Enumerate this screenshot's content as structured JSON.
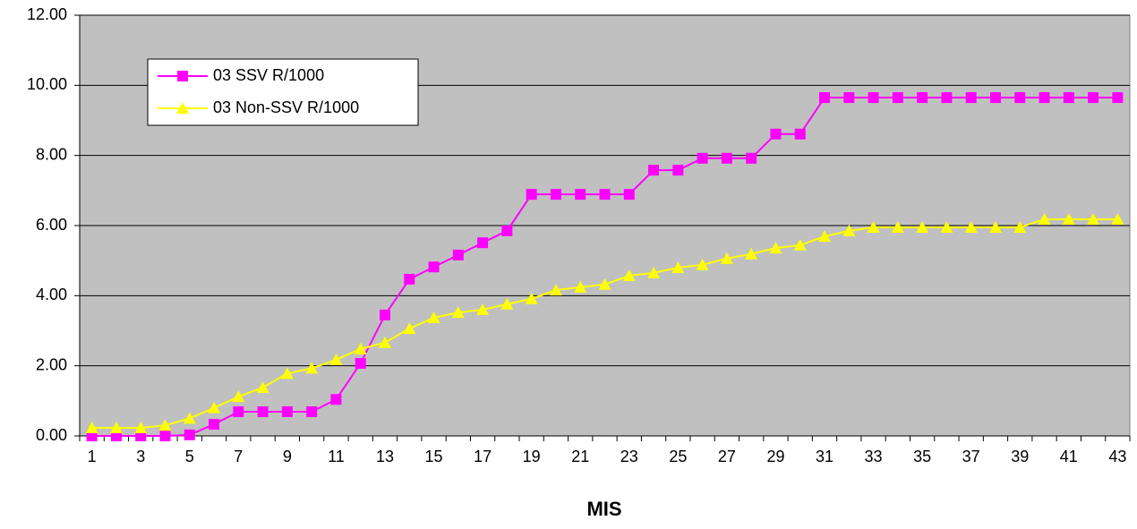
{
  "chart_data": {
    "type": "line",
    "x_label": "MIS",
    "categories": [
      "1",
      null,
      "3",
      null,
      "5",
      null,
      "7",
      null,
      "9",
      null,
      "11",
      null,
      "13",
      null,
      "15",
      null,
      "17",
      null,
      "19",
      null,
      "21",
      null,
      "23",
      null,
      "25",
      null,
      "27",
      null,
      "29",
      null,
      "31",
      null,
      "33",
      null,
      "35",
      null,
      "37",
      null,
      "39",
      null,
      "41",
      null,
      "43"
    ],
    "series": [
      {
        "name": "03 SSV R/1000",
        "color": "#ff00ff",
        "marker": "square",
        "values": [
          0,
          0,
          0,
          0,
          0.03,
          0.33,
          0.69,
          0.69,
          0.69,
          0.69,
          1.04,
          2.07,
          3.45,
          4.47,
          4.82,
          5.16,
          5.51,
          5.85,
          6.89,
          6.89,
          6.89,
          6.89,
          6.89,
          7.58,
          7.58,
          7.92,
          7.92,
          7.92,
          8.61,
          8.61,
          9.65,
          9.65,
          9.65,
          9.65,
          9.65,
          9.65,
          9.65,
          9.65,
          9.65,
          9.65,
          9.65,
          9.65,
          9.65
        ]
      },
      {
        "name": "03 Non-SSV R/1000",
        "color": "#ffff00",
        "marker": "triangle",
        "values": [
          0.23,
          0.23,
          0.23,
          0.3,
          0.5,
          0.8,
          1.12,
          1.38,
          1.78,
          1.93,
          2.17,
          2.48,
          2.66,
          3.06,
          3.37,
          3.52,
          3.6,
          3.76,
          3.91,
          4.16,
          4.24,
          4.32,
          4.57,
          4.65,
          4.8,
          4.88,
          5.06,
          5.19,
          5.36,
          5.44,
          5.69,
          5.85,
          5.95,
          5.95,
          5.95,
          5.95,
          5.95,
          5.95,
          5.95,
          6.18,
          6.18,
          6.18,
          6.18
        ]
      }
    ],
    "ylim": [
      0,
      12
    ],
    "yticks": [
      {
        "value": 0,
        "label": "0.00"
      },
      {
        "value": 2,
        "label": "2.00"
      },
      {
        "value": 4,
        "label": "4.00"
      },
      {
        "value": 6,
        "label": "6.00"
      },
      {
        "value": 8,
        "label": "8.00"
      },
      {
        "value": 10,
        "label": "10.00"
      },
      {
        "value": 12,
        "label": "12.00"
      }
    ],
    "grid": true
  }
}
